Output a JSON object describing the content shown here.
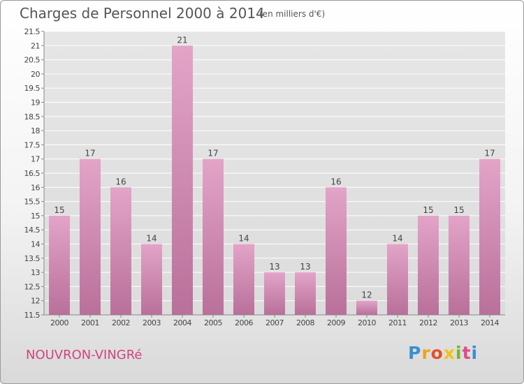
{
  "header": {
    "title": "Charges de Personnel 2000 à 2014",
    "subtitle": "(en milliers d'€)"
  },
  "footer": {
    "place": "NOUVRON-VINGRé",
    "logo_letters": [
      "P",
      "r",
      "o",
      "x",
      "i",
      "t",
      "i"
    ],
    "logo_colors": [
      "#3a8fd0",
      "#f0a21c",
      "#e0522a",
      "#f0c418",
      "#78b52c",
      "#e04a8a",
      "#3a8fd0"
    ]
  },
  "chart_data": {
    "type": "bar",
    "title": "Charges de Personnel 2000 à 2014",
    "subtitle": "(en milliers d'€)",
    "xlabel": "",
    "ylabel": "",
    "categories": [
      "2000",
      "2001",
      "2002",
      "2003",
      "2004",
      "2005",
      "2006",
      "2007",
      "2008",
      "2009",
      "2010",
      "2011",
      "2012",
      "2013",
      "2014"
    ],
    "values": [
      15,
      17,
      16,
      14,
      21,
      17,
      14,
      13,
      13,
      16,
      12,
      14,
      15,
      15,
      17
    ],
    "ylim": [
      11.5,
      21.5
    ],
    "yticks": [
      "11.5",
      "12",
      "12.5",
      "13",
      "13.5",
      "14",
      "14.5",
      "15",
      "15.5",
      "16",
      "16.5",
      "17",
      "17.5",
      "18",
      "18.5",
      "19",
      "19.5",
      "20",
      "20.5",
      "21",
      "21.5"
    ],
    "grid": true,
    "bar_color_top": "#e3a4c8",
    "bar_color_bottom": "#b9709a"
  }
}
